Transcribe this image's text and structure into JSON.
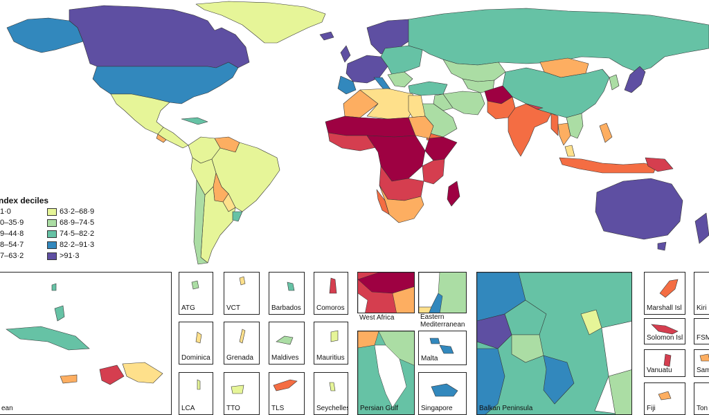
{
  "legend": {
    "title": "ndex deciles",
    "items": [
      {
        "label": "1·0",
        "color": "#9e0142"
      },
      {
        "label": "0–35·9",
        "color": "#d53e4f"
      },
      {
        "label": "9–44·8",
        "color": "#f46d43"
      },
      {
        "label": "8–54·7",
        "color": "#fdae61"
      },
      {
        "label": "7–63·2",
        "color": "#fee08b"
      },
      {
        "label": "63·2–68·9",
        "color": "#e6f598"
      },
      {
        "label": "68·9–74·5",
        "color": "#abdda4"
      },
      {
        "label": "74·5–82·2",
        "color": "#66c2a5"
      },
      {
        "label": "82·2–91·3",
        "color": "#3288bd"
      },
      {
        "label": ">91·3",
        "color": "#5e4fa2"
      }
    ]
  },
  "insets": {
    "caribbean": "ean",
    "atg": "ATG",
    "vct": "VCT",
    "barbados": "Barbados",
    "comoros": "Comoros",
    "west_africa": "West Africa",
    "eastern_med": "Eastern Mediterranean",
    "dominica": "Dominica",
    "grenada": "Grenada",
    "maldives": "Maldives",
    "mauritius": "Mauritius",
    "lca": "LCA",
    "tto": "TTO",
    "tls": "TLS",
    "seychelles": "Seychelles",
    "persian_gulf": "Persian Gulf",
    "malta": "Malta",
    "singapore": "Singapore",
    "balkan": "Balkan Peninsula",
    "marshall": "Marshall Isl",
    "kiribati": "Kiri",
    "solomon": "Solomon Isl",
    "fsm": "FSM",
    "vanuatu": "Vanuatu",
    "samoa": "Sam",
    "fiji": "Fiji",
    "tonga": "Ton"
  }
}
